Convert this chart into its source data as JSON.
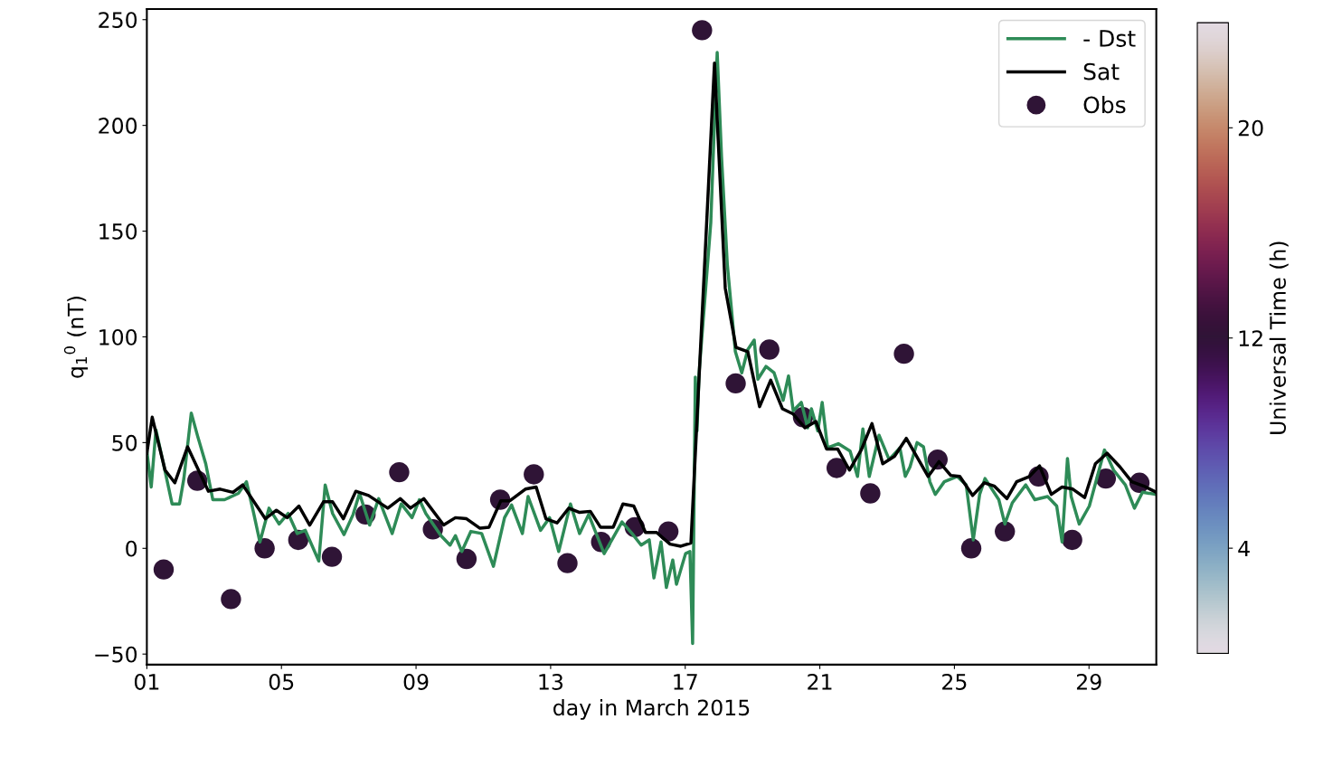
{
  "chart_data": {
    "type": "line",
    "xlabel": "day in March 2015",
    "ylabel": "q$_{1}$$^{0}$ (nT)",
    "clabel": "Universal Time (h)",
    "xlim": [
      1,
      31
    ],
    "xticks": [
      {
        "value": 1,
        "label": "01"
      },
      {
        "value": 5,
        "label": "05"
      },
      {
        "value": 9,
        "label": "09"
      },
      {
        "value": 13,
        "label": "13"
      },
      {
        "value": 17,
        "label": "17"
      },
      {
        "value": 21,
        "label": "21"
      },
      {
        "value": 25,
        "label": "25"
      },
      {
        "value": 29,
        "label": "29"
      }
    ],
    "ylim": [
      -55,
      255
    ],
    "yticks": [
      {
        "value": -50,
        "label": "−50"
      },
      0,
      50,
      100,
      150,
      200,
      250
    ],
    "clim": [
      0,
      24
    ],
    "cticks": [
      4,
      12,
      20
    ],
    "legend": "top right",
    "grid": false,
    "series": [
      {
        "name": "- Dst",
        "color": "#2e8b57",
        "x": [
          1.0,
          1.13,
          1.27,
          1.48,
          1.75,
          1.97,
          2.1,
          2.32,
          2.51,
          2.75,
          2.96,
          3.31,
          3.72,
          3.96,
          4.17,
          4.36,
          4.63,
          4.93,
          5.2,
          5.47,
          5.71,
          6.11,
          6.3,
          6.52,
          6.86,
          7.13,
          7.32,
          7.62,
          7.89,
          8.29,
          8.56,
          8.88,
          9.1,
          9.29,
          9.74,
          10.01,
          10.17,
          10.36,
          10.63,
          10.95,
          11.3,
          11.63,
          11.84,
          12.16,
          12.33,
          12.7,
          12.97,
          13.24,
          13.59,
          13.86,
          14.13,
          14.59,
          15.12,
          15.42,
          15.69,
          15.93,
          16.07,
          16.28,
          16.44,
          16.63,
          16.74,
          17.01,
          17.14,
          17.22,
          17.3,
          17.35,
          17.41,
          17.76,
          17.84,
          17.95,
          18.08,
          18.25,
          18.49,
          18.68,
          18.86,
          19.05,
          19.16,
          19.4,
          19.64,
          19.91,
          20.07,
          20.21,
          20.45,
          20.64,
          20.75,
          20.94,
          21.07,
          21.23,
          21.55,
          21.9,
          22.12,
          22.28,
          22.47,
          22.76,
          23.06,
          23.38,
          23.54,
          23.68,
          23.89,
          24.08,
          24.27,
          24.43,
          24.7,
          25.08,
          25.35,
          25.56,
          25.75,
          25.91,
          26.32,
          26.5,
          26.72,
          27.12,
          27.39,
          27.77,
          28.04,
          28.2,
          28.36,
          28.47,
          28.71,
          29.01,
          29.46,
          29.73,
          30.08,
          30.35,
          30.59,
          31.0
        ],
        "values": [
          46,
          29,
          56,
          41,
          21,
          21,
          33,
          64,
          53,
          40,
          23,
          23,
          26,
          31.5,
          17,
          3,
          19,
          11.5,
          16.5,
          7,
          8.5,
          -6,
          30,
          16.5,
          6.5,
          16,
          26,
          11,
          23.5,
          7,
          21,
          14.5,
          23,
          16.5,
          6,
          1.5,
          6,
          -1.5,
          8,
          7,
          -8.5,
          14.5,
          20.5,
          7,
          24.5,
          8.5,
          14.5,
          -1.5,
          21,
          7,
          16,
          -2.5,
          12.5,
          7,
          1.5,
          4,
          -14,
          3,
          -18.5,
          -5.5,
          -17,
          -2.5,
          -1.5,
          -45,
          81,
          55.5,
          82.5,
          154,
          189,
          234.5,
          185,
          134.5,
          93,
          83,
          94,
          98.5,
          80,
          86,
          83,
          70,
          81.5,
          65,
          69,
          57,
          66,
          55.5,
          69,
          47.5,
          49.5,
          46,
          34,
          56.5,
          34,
          53.5,
          42,
          47.5,
          34,
          38.5,
          50,
          48,
          31.5,
          25.5,
          31.5,
          34,
          30,
          4,
          25.5,
          33,
          23,
          11.5,
          21.5,
          30,
          23,
          24.5,
          20,
          3,
          42.5,
          24.5,
          11.5,
          20,
          46.5,
          37,
          30,
          19,
          26.5,
          25.5
        ]
      },
      {
        "name": "Sat",
        "color": "#000000",
        "x": [
          1.0,
          1.16,
          1.54,
          1.83,
          2.21,
          2.83,
          3.18,
          3.56,
          3.85,
          4.52,
          4.85,
          5.17,
          5.52,
          5.84,
          6.25,
          6.52,
          6.84,
          7.21,
          7.59,
          8.16,
          8.53,
          8.83,
          9.23,
          9.82,
          10.17,
          10.5,
          10.9,
          11.17,
          11.52,
          11.79,
          12.25,
          12.57,
          12.86,
          13.19,
          13.54,
          13.86,
          14.18,
          14.48,
          14.86,
          15.15,
          15.47,
          15.82,
          16.15,
          16.55,
          16.87,
          17.17,
          17.87,
          18.19,
          18.51,
          18.86,
          19.21,
          19.54,
          19.89,
          20.21,
          20.56,
          20.88,
          21.2,
          21.53,
          21.88,
          22.23,
          22.55,
          22.87,
          23.22,
          23.57,
          24.22,
          24.54,
          24.89,
          25.16,
          25.54,
          25.89,
          26.18,
          26.56,
          26.85,
          27.23,
          27.53,
          27.88,
          28.2,
          28.52,
          28.87,
          29.19,
          29.54,
          29.92,
          30.27,
          30.62,
          31.0
        ],
        "values": [
          45,
          62,
          37,
          31,
          48,
          27,
          28,
          26.5,
          30,
          14,
          18,
          14.5,
          20,
          11,
          22,
          22,
          14,
          27,
          25,
          19,
          23.5,
          19,
          23.5,
          11,
          14.5,
          14,
          9.5,
          10,
          22.5,
          22.5,
          28,
          29,
          14,
          12,
          19,
          17,
          17.5,
          10,
          10,
          21,
          20,
          7.5,
          7.5,
          2,
          1,
          2.5,
          229.5,
          123,
          95,
          93,
          67,
          79.5,
          66,
          63.5,
          57,
          60,
          47,
          47,
          37,
          46.5,
          59,
          40,
          43.5,
          52,
          34,
          41,
          34.5,
          34,
          25,
          31,
          29.5,
          23.5,
          31.5,
          34,
          39,
          25.5,
          29,
          28,
          24,
          40,
          45,
          38.5,
          31.5,
          29.5,
          26.5
        ]
      },
      {
        "name": "Obs",
        "type": "scatter",
        "marker": "circle",
        "x": [
          1.5,
          2.5,
          3.5,
          4.5,
          5.5,
          6.5,
          7.5,
          8.5,
          9.5,
          10.5,
          11.5,
          12.5,
          13.5,
          14.5,
          15.5,
          16.5,
          17.5,
          18.5,
          19.5,
          20.5,
          21.5,
          22.5,
          23.5,
          24.5,
          25.5,
          26.5,
          27.5,
          28.5,
          29.5,
          30.5
        ],
        "values": [
          -10,
          32,
          -24,
          0,
          4,
          -4,
          16,
          36,
          9,
          -5,
          23,
          35,
          -7,
          3,
          10,
          8,
          245,
          78,
          94,
          62,
          38,
          26,
          92,
          42,
          0,
          8,
          34,
          4,
          33,
          31
        ],
        "cvalues": [
          12,
          12,
          12,
          12,
          12,
          12,
          12,
          12,
          12,
          12,
          12,
          12,
          12,
          12,
          12,
          12,
          12,
          12,
          12,
          12,
          12,
          12,
          12,
          12,
          12,
          12,
          12,
          12,
          12,
          12
        ]
      }
    ]
  }
}
